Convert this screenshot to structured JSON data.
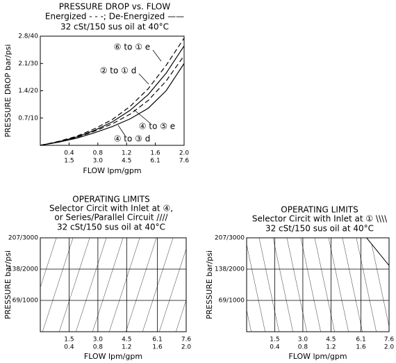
{
  "chart_data": [
    {
      "type": "line",
      "title": "PRESSURE DROP vs. FLOW",
      "subtitles": [
        "Energized - - -; De-Energized ——",
        "32 cSt/150 sus oil at 40°C"
      ],
      "x_label": "FLOW lpm/gpm",
      "y_label": "PRESSURE DROP bar/psi",
      "x": [
        0,
        0.25,
        0.5,
        0.75,
        1.0,
        1.25,
        1.5,
        1.75,
        2.0
      ],
      "series": [
        {
          "name": "⑥ to ① e",
          "dashed": true,
          "color": "#000000",
          "values": [
            0,
            0.1,
            0.23,
            0.42,
            0.66,
            1.0,
            1.45,
            2.05,
            2.75
          ]
        },
        {
          "name": "② to ① d",
          "dashed": false,
          "color": "#000000",
          "values": [
            0,
            0.09,
            0.21,
            0.38,
            0.6,
            0.9,
            1.3,
            1.85,
            2.55
          ]
        },
        {
          "name": "④ to ⑤ e",
          "dashed": true,
          "color": "#000000",
          "values": [
            0,
            0.09,
            0.2,
            0.36,
            0.55,
            0.8,
            1.15,
            1.65,
            2.3
          ]
        },
        {
          "name": "④ to ③ d",
          "dashed": false,
          "color": "#000000",
          "values": [
            0,
            0.08,
            0.18,
            0.32,
            0.48,
            0.68,
            0.95,
            1.4,
            2.1
          ]
        }
      ],
      "xlim": [
        0,
        2.0
      ],
      "xticks": [
        {
          "value": 0.4,
          "label": [
            "0.4",
            "1.5"
          ]
        },
        {
          "value": 0.8,
          "label": [
            "0.8",
            "3.0"
          ]
        },
        {
          "value": 1.2,
          "label": [
            "1.2",
            "4.5"
          ]
        },
        {
          "value": 1.6,
          "label": [
            "1.6",
            "6.1"
          ]
        },
        {
          "value": 2.0,
          "label": [
            "2.0",
            "7.6"
          ]
        }
      ],
      "ylim": [
        0,
        2.8
      ],
      "yticks": [
        {
          "value": 0.7,
          "label": "0.7/10"
        },
        {
          "value": 1.4,
          "label": "1.4/20"
        },
        {
          "value": 2.1,
          "label": "2.1/30"
        },
        {
          "value": 2.8,
          "label": "2.8/40"
        }
      ],
      "grid": false
    },
    {
      "type": "area",
      "title": "OPERATING LIMITS",
      "subtitles": [
        "Selector Circit with Inlet at ④,",
        "or Series/Parallel Circuit  ////",
        "32 cSt/150 sus oil at 40°C"
      ],
      "x_label": "FLOW lpm/gpm",
      "y_label": "PRESSURE bar/psi",
      "x": [
        0,
        7.6
      ],
      "values": [
        207,
        207
      ],
      "hatch": "forward",
      "color": "#000000",
      "xlim": [
        0,
        7.6
      ],
      "xticks": [
        {
          "value": 1.5,
          "label": [
            "1.5",
            "0.4"
          ]
        },
        {
          "value": 3.0,
          "label": [
            "3.0",
            "0.8"
          ]
        },
        {
          "value": 4.5,
          "label": [
            "4.5",
            "1.2"
          ]
        },
        {
          "value": 6.1,
          "label": [
            "6.1",
            "1.6"
          ]
        },
        {
          "value": 7.6,
          "label": [
            "7.6",
            "2.0"
          ]
        }
      ],
      "ylim": [
        0,
        207
      ],
      "yticks": [
        {
          "value": 69,
          "label": "69/1000"
        },
        {
          "value": 138,
          "label": "138/2000"
        },
        {
          "value": 207,
          "label": "207/3000"
        }
      ],
      "grid": true
    },
    {
      "type": "area",
      "title": "OPERATING LIMITS",
      "subtitles": [
        "Selector Circit with Inlet at ①  \\\\\\\\",
        "32 cSt/150 sus oil at 40°C"
      ],
      "x_label": "FLOW lpm/gpm",
      "y_label": "PRESSURE bar/psi",
      "x": [
        0,
        6.4,
        7.6
      ],
      "values": [
        207,
        207,
        146
      ],
      "hatch": "back",
      "color": "#000000",
      "xlim": [
        0,
        7.6
      ],
      "xticks": [
        {
          "value": 1.5,
          "label": [
            "1.5",
            "0.4"
          ]
        },
        {
          "value": 3.0,
          "label": [
            "3.0",
            "0.8"
          ]
        },
        {
          "value": 4.5,
          "label": [
            "4.5",
            "1.2"
          ]
        },
        {
          "value": 6.1,
          "label": [
            "6.1",
            "1.6"
          ]
        },
        {
          "value": 7.6,
          "label": [
            "7.6",
            "2.0"
          ]
        }
      ],
      "ylim": [
        0,
        207
      ],
      "yticks": [
        {
          "value": 69,
          "label": "69/1000"
        },
        {
          "value": 138,
          "label": "138/2000"
        },
        {
          "value": 207,
          "label": "207/3000"
        }
      ],
      "grid": true
    }
  ]
}
